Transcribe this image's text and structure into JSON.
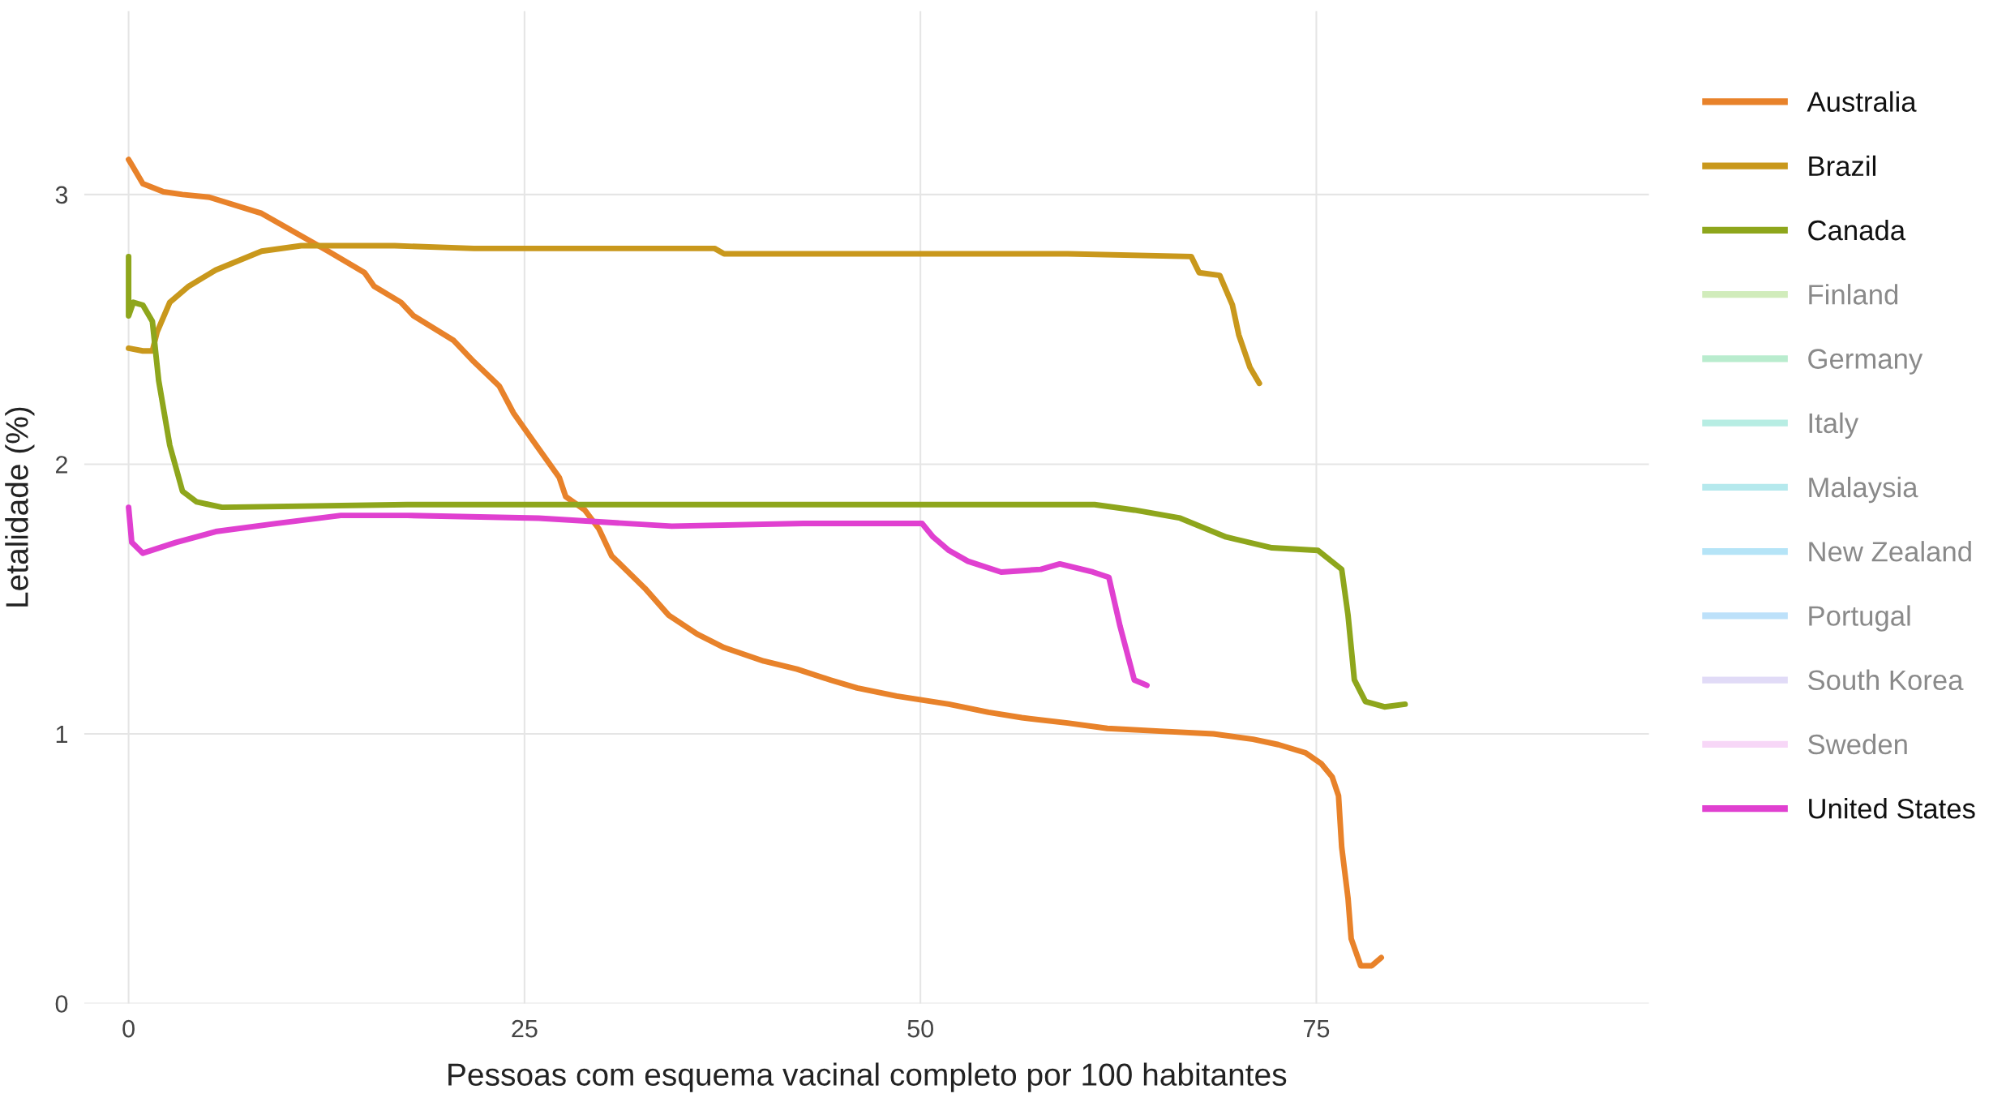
{
  "chart_data": {
    "type": "line",
    "xlabel": "Pessoas com esquema vacinal completo por 100 habitantes",
    "ylabel": "Letalidade (%)",
    "xlim": [
      -2.8,
      96
    ],
    "ylim": [
      0,
      3.68
    ],
    "xticks": [
      0,
      25,
      50,
      75
    ],
    "yticks": [
      0,
      1,
      2,
      3
    ],
    "grid": true,
    "legend": "right",
    "line_style": "solid",
    "marker": "none",
    "series": [
      {
        "name": "Australia",
        "color": "#e8822a",
        "x": [
          0,
          0.2,
          0.9,
          2.2,
          3.4,
          5.1,
          8.4,
          10.5,
          12.6,
          14.9,
          15.5,
          17.2,
          18.0,
          20.5,
          21.8,
          23.4,
          24.3,
          25.5,
          27.2,
          27.6,
          28.8,
          29.7,
          30.5,
          32.6,
          34.1,
          35.9,
          37.6,
          40.1,
          42.2,
          44.3,
          46.0,
          48.5,
          51.8,
          54.3,
          56.4,
          59.3,
          61.8,
          65.1,
          68.5,
          71.0,
          72.6,
          74.3,
          75.3,
          76.0,
          76.4,
          76.6,
          77.0,
          77.2,
          77.8,
          78.5,
          79.1
        ],
        "values": [
          3.13,
          3.11,
          3.04,
          3.01,
          3.0,
          2.99,
          2.93,
          2.86,
          2.79,
          2.71,
          2.66,
          2.6,
          2.55,
          2.46,
          2.38,
          2.29,
          2.19,
          2.09,
          1.95,
          1.88,
          1.83,
          1.76,
          1.66,
          1.54,
          1.44,
          1.37,
          1.32,
          1.27,
          1.24,
          1.2,
          1.17,
          1.14,
          1.11,
          1.08,
          1.06,
          1.04,
          1.02,
          1.01,
          1.0,
          0.98,
          0.96,
          0.93,
          0.89,
          0.84,
          0.77,
          0.58,
          0.39,
          0.24,
          0.14,
          0.14,
          0.17
        ]
      },
      {
        "name": "Brazil",
        "color": "#c9981c",
        "x": [
          0,
          0.9,
          1.5,
          1.8,
          2.6,
          3.8,
          5.5,
          8.4,
          10.9,
          16.8,
          21.8,
          30.1,
          37.0,
          37.6,
          46.8,
          59.3,
          67.1,
          67.6,
          68.9,
          69.7,
          70.1,
          70.8,
          71.4
        ],
        "values": [
          2.43,
          2.42,
          2.42,
          2.49,
          2.6,
          2.66,
          2.72,
          2.79,
          2.81,
          2.81,
          2.8,
          2.8,
          2.8,
          2.78,
          2.78,
          2.78,
          2.77,
          2.71,
          2.7,
          2.59,
          2.48,
          2.36,
          2.3
        ]
      },
      {
        "name": "Canada",
        "color": "#8ea61c",
        "x": [
          0,
          0,
          0.3,
          0.9,
          1.5,
          1.9,
          2.6,
          3.4,
          4.3,
          5.9,
          17.6,
          30.1,
          61.0,
          63.5,
          66.4,
          69.3,
          72.2,
          75.1,
          76.6,
          77.0,
          77.4,
          78.1,
          79.3,
          80.6
        ],
        "values": [
          2.77,
          2.55,
          2.6,
          2.59,
          2.53,
          2.31,
          2.07,
          1.9,
          1.86,
          1.84,
          1.85,
          1.85,
          1.85,
          1.83,
          1.8,
          1.73,
          1.69,
          1.68,
          1.61,
          1.44,
          1.2,
          1.12,
          1.1,
          1.11
        ]
      },
      {
        "name": "Finland",
        "color": "#a3d977"
      },
      {
        "name": "Germany",
        "color": "#74d99e"
      },
      {
        "name": "Italy",
        "color": "#6fdcc7"
      },
      {
        "name": "Malaysia",
        "color": "#6cd3dc"
      },
      {
        "name": "New Zealand",
        "color": "#6ccaf0"
      },
      {
        "name": "Portugal",
        "color": "#7cc4f5"
      },
      {
        "name": "South Korea",
        "color": "#c3b8f0"
      },
      {
        "name": "Sweden",
        "color": "#f0b0f0"
      },
      {
        "name": "United States",
        "color": "#e040d0",
        "x": [
          0,
          0.2,
          0.9,
          3.0,
          5.5,
          9.3,
          13.4,
          17.6,
          25.9,
          34.3,
          42.6,
          46.8,
          50.1,
          50.8,
          51.8,
          53.0,
          55.1,
          57.6,
          58.8,
          60.9,
          61.9,
          62.6,
          63.5,
          64.3
        ],
        "values": [
          1.84,
          1.71,
          1.67,
          1.71,
          1.75,
          1.78,
          1.81,
          1.81,
          1.8,
          1.77,
          1.78,
          1.78,
          1.78,
          1.73,
          1.68,
          1.64,
          1.6,
          1.61,
          1.63,
          1.6,
          1.58,
          1.4,
          1.2,
          1.18
        ]
      }
    ]
  }
}
